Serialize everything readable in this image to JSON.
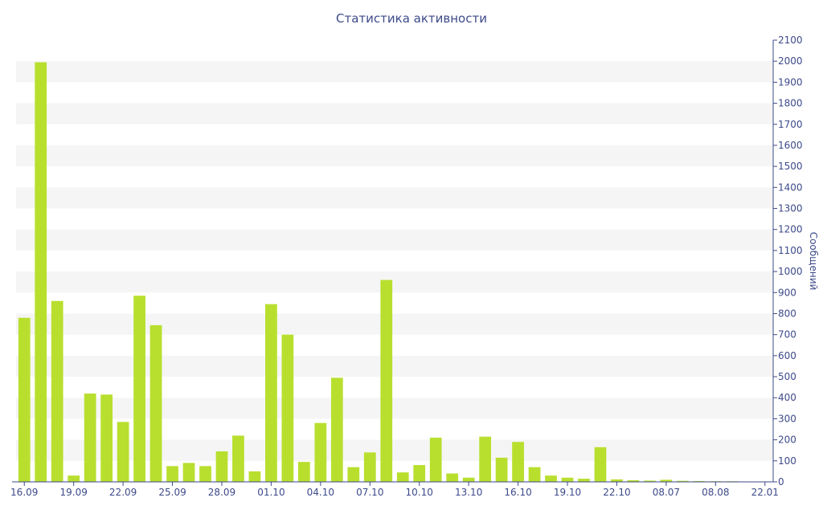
{
  "chart_data": {
    "type": "bar",
    "title": "Статистика активности",
    "xlabel": "",
    "ylabel": "Сообщений",
    "ylim": [
      0,
      2100
    ],
    "y_ticks": [
      0,
      100,
      200,
      300,
      400,
      500,
      600,
      700,
      800,
      900,
      1000,
      1100,
      1200,
      1300,
      1400,
      1500,
      1600,
      1700,
      1800,
      1900,
      2000,
      2100
    ],
    "x_tick_labels": [
      "16.09",
      "19.09",
      "22.09",
      "25.09",
      "28.09",
      "01.10",
      "04.10",
      "07.10",
      "10.10",
      "13.10",
      "16.10",
      "19.10",
      "22.10",
      "08.07",
      "08.08",
      "22.01"
    ],
    "grid": true,
    "bar_color": "#b8df2e",
    "values": [
      780,
      1995,
      860,
      30,
      420,
      415,
      285,
      885,
      745,
      75,
      90,
      75,
      145,
      220,
      50,
      845,
      700,
      95,
      280,
      495,
      70,
      140,
      960,
      45,
      80,
      210,
      40,
      20,
      215,
      115,
      190,
      70,
      30,
      20,
      15,
      165,
      12,
      8,
      6,
      10,
      5,
      4,
      3,
      3,
      2,
      2
    ]
  }
}
